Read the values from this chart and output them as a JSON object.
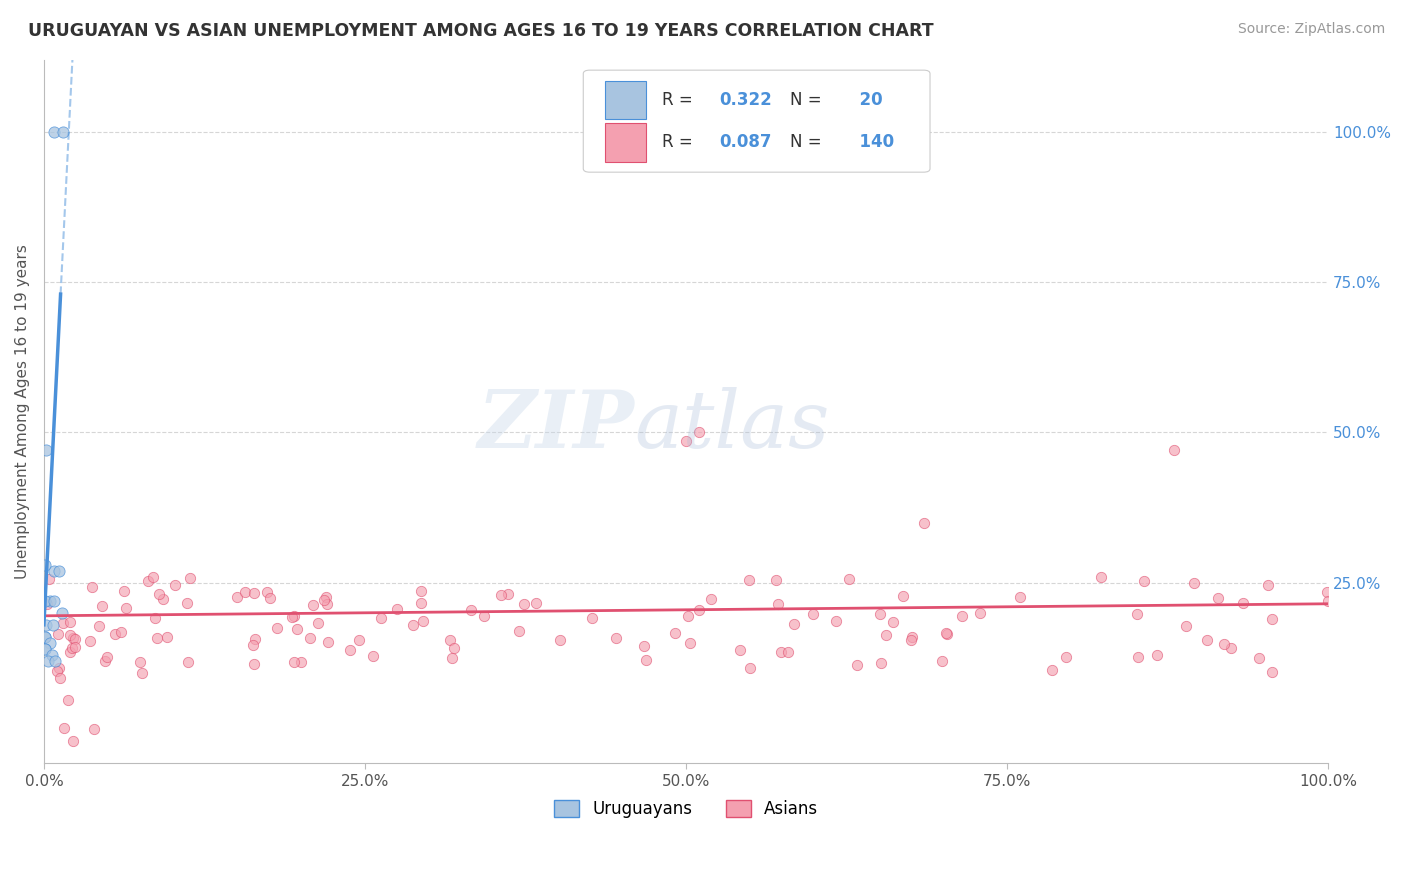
{
  "title": "URUGUAYAN VS ASIAN UNEMPLOYMENT AMONG AGES 16 TO 19 YEARS CORRELATION CHART",
  "source": "Source: ZipAtlas.com",
  "ylabel": "Unemployment Among Ages 16 to 19 years",
  "xlim": [
    0.0,
    1.0
  ],
  "ylim": [
    -0.05,
    1.12
  ],
  "xtick_labels": [
    "0.0%",
    "25.0%",
    "50.0%",
    "75.0%",
    "100.0%"
  ],
  "xtick_positions": [
    0.0,
    0.25,
    0.5,
    0.75,
    1.0
  ],
  "ytick_labels": [
    "100.0%",
    "75.0%",
    "50.0%",
    "25.0%"
  ],
  "ytick_positions": [
    1.0,
    0.75,
    0.5,
    0.25
  ],
  "grid_color": "#cccccc",
  "background_color": "#ffffff",
  "uruguayan_color": "#a8c4e0",
  "asian_color": "#f4a0b0",
  "uruguayan_line_color": "#4a90d9",
  "asian_line_color": "#e05070",
  "uruguayan_R": 0.322,
  "uruguayan_N": 20,
  "asian_R": 0.087,
  "asian_N": 140,
  "legend_label_uruguayan": "Uruguayans",
  "legend_label_asian": "Asians",
  "tick_color": "#4a90d9",
  "label_color": "#555555"
}
